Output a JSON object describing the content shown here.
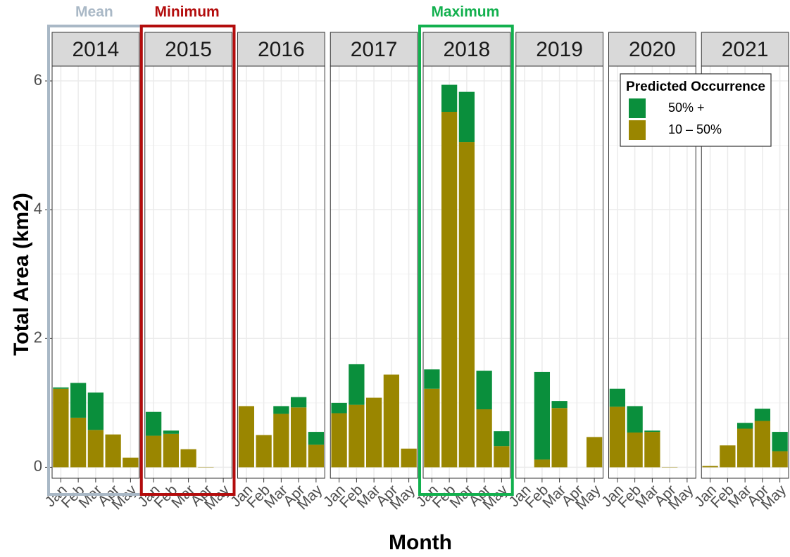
{
  "chart_data": {
    "type": "bar",
    "stacked": true,
    "y_label": "Total Area (km2)",
    "x_label": "Month",
    "categories": [
      "Jan",
      "Feb",
      "Mar",
      "Apr",
      "May"
    ],
    "ylim": [
      -0.17,
      6.23
    ],
    "yticks": [
      0,
      2,
      4,
      6
    ],
    "grid": true,
    "legend": {
      "title": "Predicted Occurrence",
      "position": "upper right"
    },
    "series_names": [
      "10 – 50%",
      "50% +"
    ],
    "series_colors": [
      "#9a8600",
      "#0a8f3c"
    ],
    "legend_order": [
      1,
      0
    ],
    "panels": [
      {
        "title": "2014",
        "highlight": {
          "label": "Mean",
          "color": "#a9b8c6"
        },
        "series": [
          {
            "values": [
              1.22,
              0.77,
              0.58,
              0.51,
              0.15
            ]
          },
          {
            "values": [
              0.02,
              0.54,
              0.58,
              0,
              0
            ]
          }
        ]
      },
      {
        "title": "2015",
        "highlight": {
          "label": "Minimum",
          "color": "#b30c0c"
        },
        "series": [
          {
            "values": [
              0.49,
              0.52,
              0.28,
              0.005,
              0
            ]
          },
          {
            "values": [
              0.37,
              0.05,
              0,
              0,
              0
            ]
          }
        ]
      },
      {
        "title": "2016",
        "series": [
          {
            "values": [
              0.95,
              0.5,
              0.83,
              0.93,
              0.35
            ]
          },
          {
            "values": [
              0,
              0,
              0.12,
              0.16,
              0.2
            ]
          }
        ]
      },
      {
        "title": "2017",
        "series": [
          {
            "values": [
              0.84,
              0.97,
              1.08,
              1.44,
              0.29
            ]
          },
          {
            "values": [
              0.16,
              0.63,
              0,
              0,
              0
            ]
          }
        ]
      },
      {
        "title": "2018",
        "highlight": {
          "label": "Maximum",
          "color": "#12b04e"
        },
        "series": [
          {
            "values": [
              1.22,
              5.52,
              5.05,
              0.9,
              0.33
            ]
          },
          {
            "values": [
              0.3,
              0.42,
              0.78,
              0.6,
              0.23
            ]
          }
        ]
      },
      {
        "title": "2019",
        "series": [
          {
            "values": [
              0,
              0.12,
              0.92,
              0,
              0.47
            ]
          },
          {
            "values": [
              0,
              1.36,
              0.11,
              0,
              0
            ]
          }
        ]
      },
      {
        "title": "2020",
        "series": [
          {
            "values": [
              0.94,
              0.54,
              0.55,
              0.005,
              0
            ]
          },
          {
            "values": [
              0.28,
              0.41,
              0.02,
              0,
              0
            ]
          }
        ]
      },
      {
        "title": "2021",
        "series": [
          {
            "values": [
              0.02,
              0.34,
              0.6,
              0.72,
              0.25
            ]
          },
          {
            "values": [
              0,
              0,
              0.09,
              0.19,
              0.3
            ]
          }
        ]
      }
    ]
  }
}
